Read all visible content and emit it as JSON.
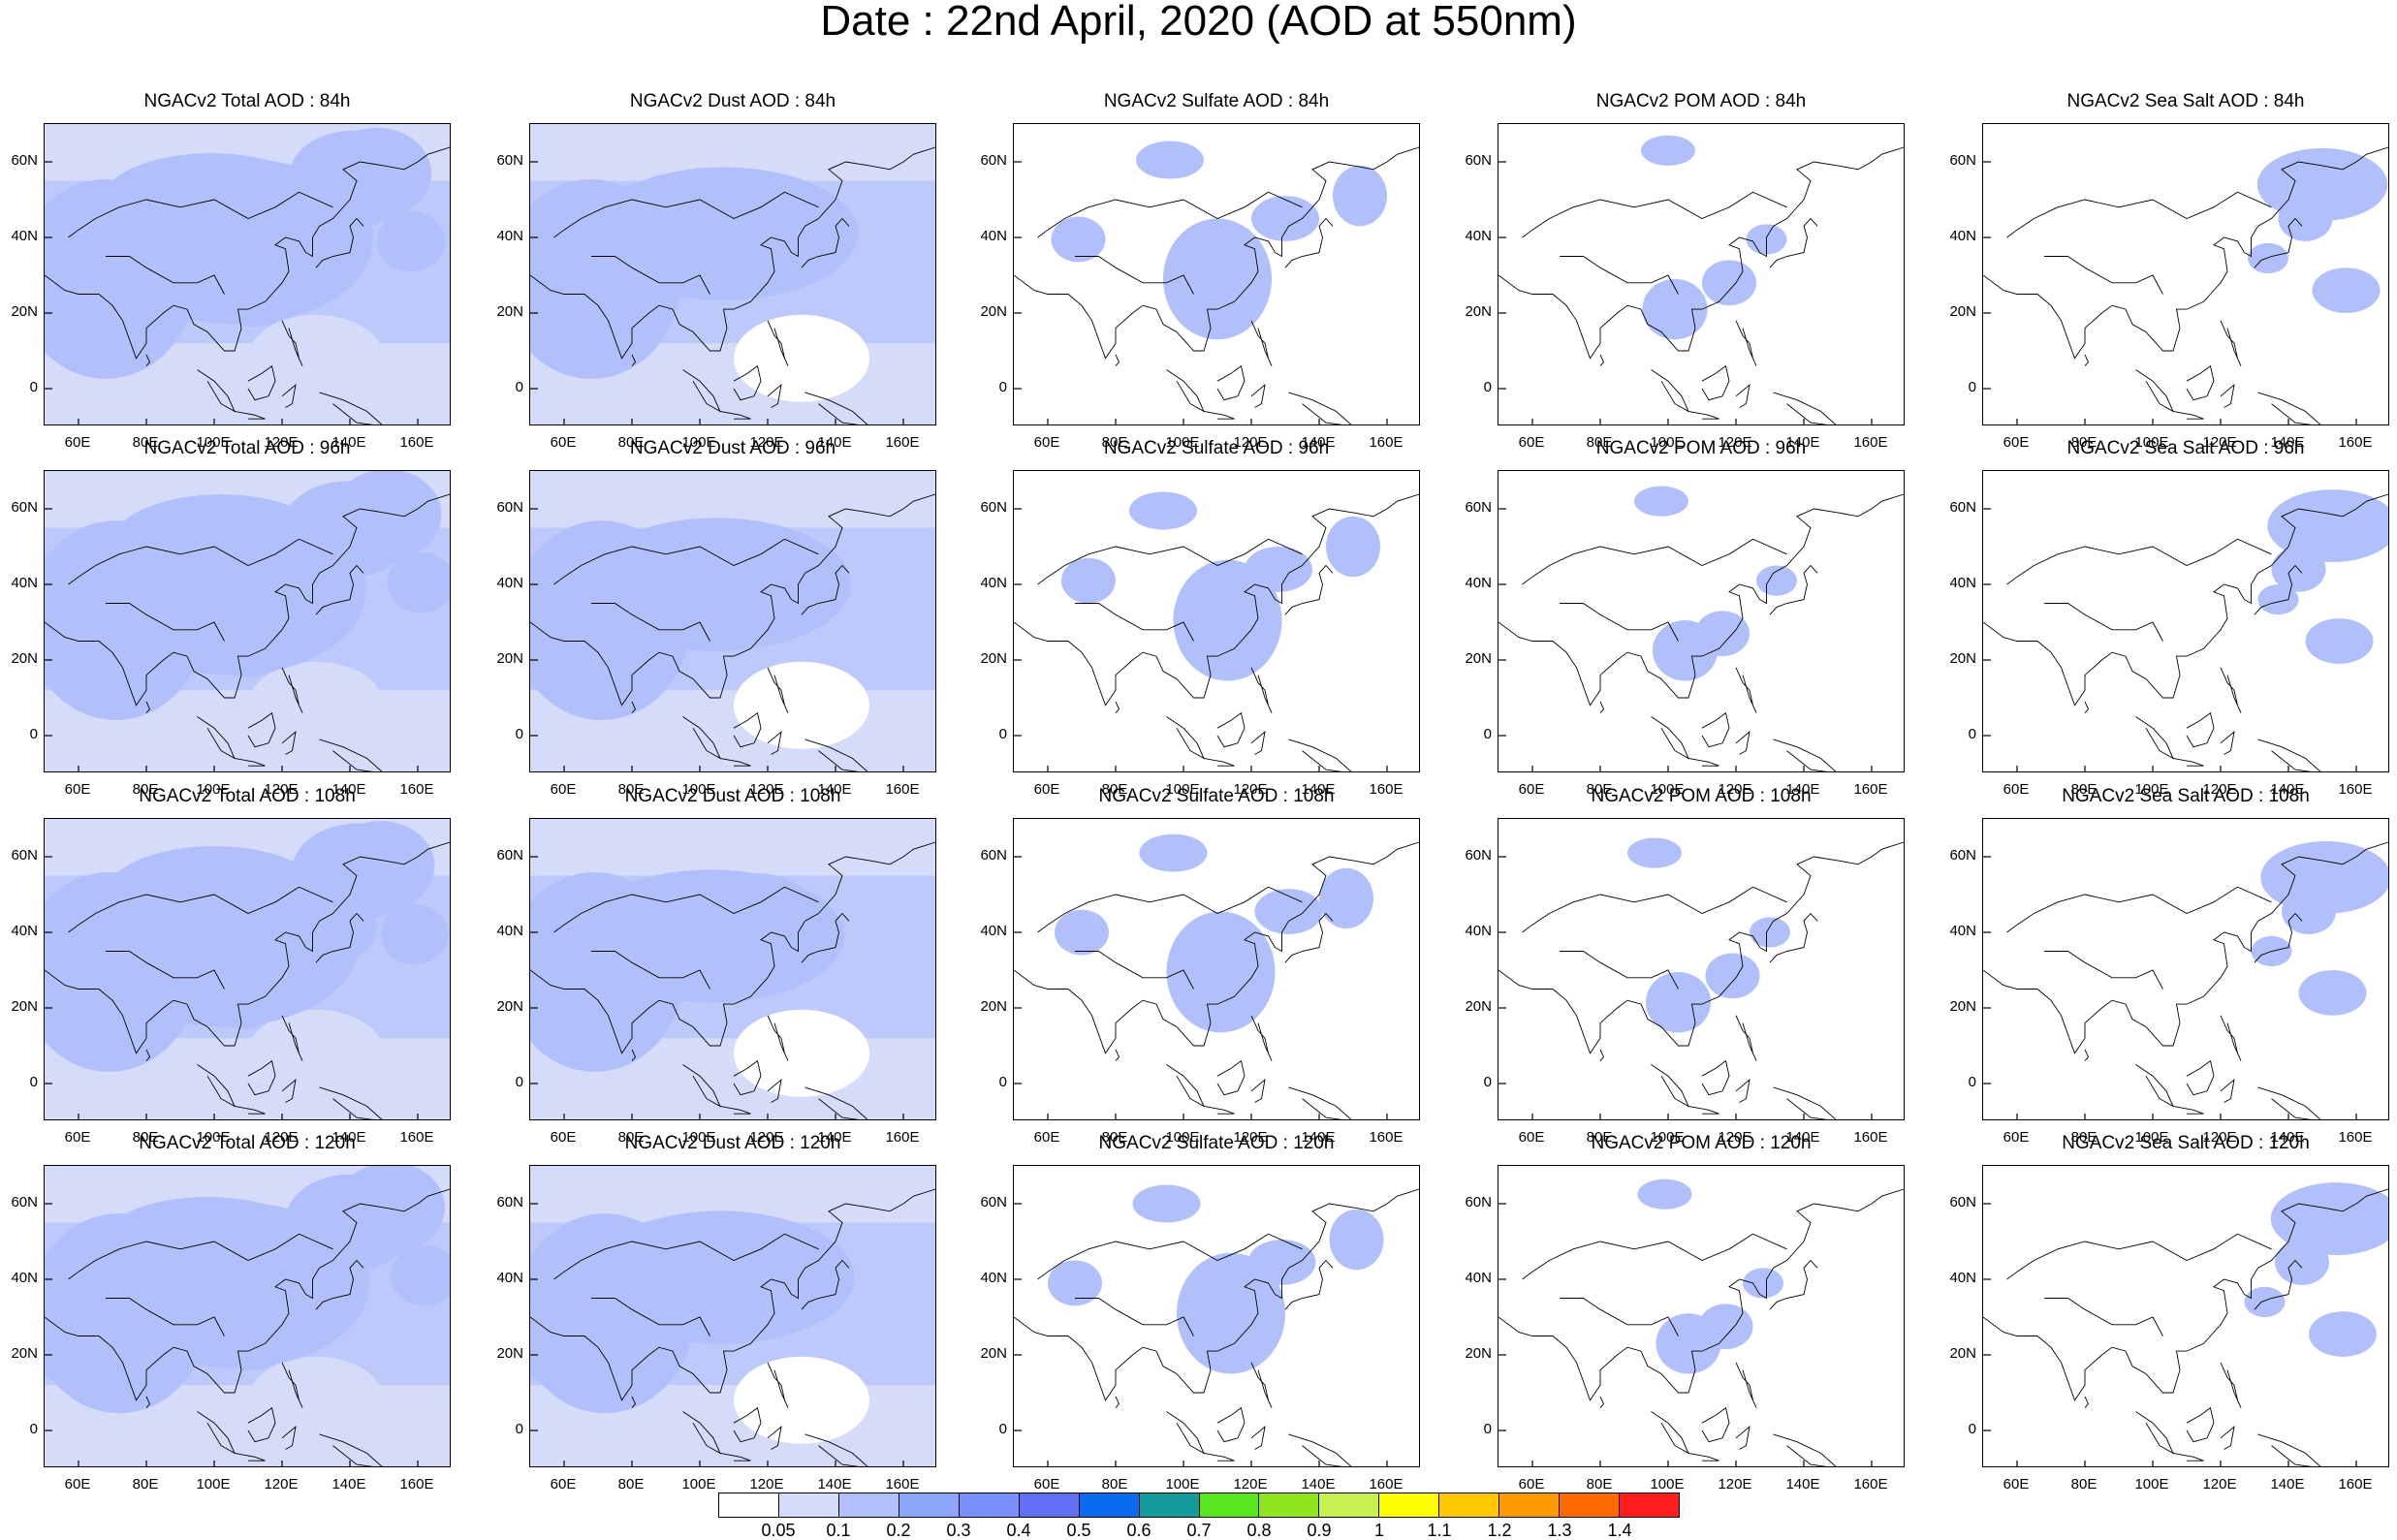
{
  "title": "Date : 22nd April, 2020 (AOD at 550nm)",
  "panels": [
    {
      "title": "NGACv2 Total AOD : 84h",
      "species": "total",
      "hour": 84
    },
    {
      "title": "NGACv2 Dust AOD : 84h",
      "species": "dust",
      "hour": 84
    },
    {
      "title": "NGACv2 Sulfate AOD : 84h",
      "species": "sulfate",
      "hour": 84
    },
    {
      "title": "NGACv2 POM AOD : 84h",
      "species": "pom",
      "hour": 84
    },
    {
      "title": "NGACv2 Sea Salt AOD : 84h",
      "species": "seasalt",
      "hour": 84
    },
    {
      "title": "NGACv2 Total AOD : 96h",
      "species": "total",
      "hour": 96
    },
    {
      "title": "NGACv2 Dust AOD : 96h",
      "species": "dust",
      "hour": 96
    },
    {
      "title": "NGACv2 Sulfate AOD : 96h",
      "species": "sulfate",
      "hour": 96
    },
    {
      "title": "NGACv2 POM AOD : 96h",
      "species": "pom",
      "hour": 96
    },
    {
      "title": "NGACv2 Sea Salt AOD : 96h",
      "species": "seasalt",
      "hour": 96
    },
    {
      "title": "NGACv2 Total AOD : 108h",
      "species": "total",
      "hour": 108
    },
    {
      "title": "NGACv2 Dust AOD : 108h",
      "species": "dust",
      "hour": 108
    },
    {
      "title": "NGACv2 Sulfate AOD : 108h",
      "species": "sulfate",
      "hour": 108
    },
    {
      "title": "NGACv2 POM AOD : 108h",
      "species": "pom",
      "hour": 108
    },
    {
      "title": "NGACv2 Sea Salt AOD : 108h",
      "species": "seasalt",
      "hour": 108
    },
    {
      "title": "NGACv2 Total AOD : 120h",
      "species": "total",
      "hour": 120
    },
    {
      "title": "NGACv2 Dust AOD : 120h",
      "species": "dust",
      "hour": 120
    },
    {
      "title": "NGACv2 Sulfate AOD : 120h",
      "species": "sulfate",
      "hour": 120
    },
    {
      "title": "NGACv2 POM AOD : 120h",
      "species": "pom",
      "hour": 120
    },
    {
      "title": "NGACv2 Sea Salt  AOD : 120h",
      "species": "seasalt",
      "hour": 120
    }
  ],
  "axes": {
    "lat_ticks": [
      "60N",
      "40N",
      "20N",
      "0"
    ],
    "lat_values": [
      60,
      40,
      20,
      0
    ],
    "lon_ticks": [
      "60E",
      "80E",
      "100E",
      "120E",
      "140E",
      "160E"
    ],
    "lon_values": [
      60,
      80,
      100,
      120,
      140,
      160
    ],
    "lon_range": [
      50,
      170
    ],
    "lat_range": [
      -10,
      70
    ]
  },
  "colorbar": {
    "labels": [
      "0.05",
      "0.1",
      "0.2",
      "0.3",
      "0.4",
      "0.5",
      "0.6",
      "0.7",
      "0.8",
      "0.9",
      "1",
      "1.1",
      "1.2",
      "1.3",
      "1.4"
    ],
    "colors": [
      "#ffffff",
      "#d5dcfa",
      "#b1c0fa",
      "#8ea6fa",
      "#7a8ffa",
      "#6170f5",
      "#0a6af0",
      "#149a9a",
      "#5ae61e",
      "#8ee61e",
      "#c8f050",
      "#ffff00",
      "#ffc800",
      "#ff9a00",
      "#ff6a00",
      "#ff1e1e"
    ]
  }
}
